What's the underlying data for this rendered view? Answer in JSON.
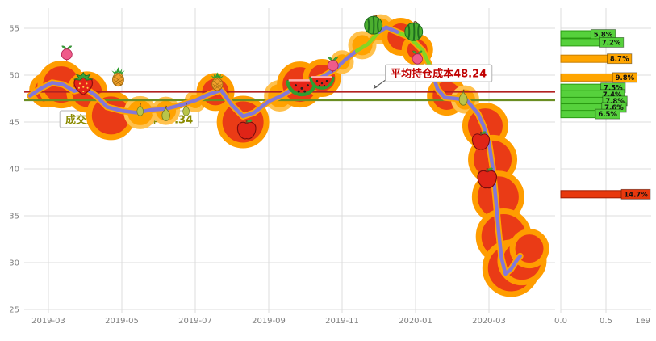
{
  "chart_data": {
    "type": "line",
    "title": "",
    "main_chart": {
      "x_tick_labels": [
        "2019-03",
        "2019-05",
        "2019-07",
        "2019-09",
        "2019-11",
        "2020-01",
        "2020-03"
      ],
      "x_tick_months": [
        3,
        5,
        7,
        9,
        11,
        13,
        15
      ],
      "y_ticks": [
        25,
        30,
        35,
        40,
        45,
        50,
        55
      ],
      "ylim": [
        24.5,
        57
      ],
      "price_color": "#8377d8",
      "halo_color": "#ffa500",
      "highlight_color": "#86d71f",
      "price_series": {
        "x": [
          2.5,
          2.8,
          3.1,
          3.4,
          3.7,
          4.0,
          4.3,
          4.6,
          5.0,
          5.4,
          5.8,
          6.2,
          6.6,
          7.0,
          7.4,
          7.7,
          8.0,
          8.3,
          8.6,
          9.0,
          9.4,
          9.8,
          10.2,
          10.5,
          10.8,
          11.1,
          11.4,
          11.7,
          12.0,
          12.2,
          12.5,
          12.8,
          13.0,
          13.2,
          13.4,
          13.6,
          13.8,
          14.1,
          14.4,
          14.7,
          14.85,
          15.0,
          15.1,
          15.18,
          15.26,
          15.34,
          15.45,
          15.6,
          15.75,
          15.85
        ],
        "y": [
          47.8,
          48.6,
          49.2,
          49.0,
          48.3,
          48.6,
          47.8,
          46.6,
          46.2,
          46.0,
          46.3,
          46.4,
          46.8,
          47.3,
          48.0,
          48.4,
          46.8,
          45.6,
          46.0,
          47.2,
          47.9,
          48.9,
          49.4,
          49.9,
          50.6,
          51.7,
          52.6,
          53.3,
          54.6,
          55.1,
          54.6,
          54.1,
          53.4,
          52.6,
          50.9,
          48.5,
          47.6,
          47.5,
          47.3,
          45.9,
          44.6,
          42.8,
          40.2,
          37.0,
          33.5,
          30.5,
          28.8,
          29.3,
          30.2,
          30.7
        ]
      },
      "avg_cost_line": {
        "value": 48.24,
        "color": "#b22222"
      },
      "vwap_cost_line": {
        "value": 47.34,
        "color": "#6b8e23"
      },
      "blobs": [
        {
          "x": 2.95,
          "y": 48.4,
          "r": 18,
          "c": "red"
        },
        {
          "x": 3.35,
          "y": 49.0,
          "r": 26,
          "c": "red"
        },
        {
          "x": 4.05,
          "y": 48.2,
          "r": 22,
          "c": "red"
        },
        {
          "x": 4.7,
          "y": 45.7,
          "r": 27,
          "c": "red"
        },
        {
          "x": 5.5,
          "y": 46.0,
          "r": 18,
          "c": "orange"
        },
        {
          "x": 6.2,
          "y": 46.2,
          "r": 15,
          "c": "orange"
        },
        {
          "x": 7.0,
          "y": 47.2,
          "r": 11,
          "c": "orange"
        },
        {
          "x": 7.55,
          "y": 48.2,
          "r": 20,
          "c": "red"
        },
        {
          "x": 8.3,
          "y": 45.0,
          "r": 29,
          "c": "red"
        },
        {
          "x": 9.3,
          "y": 47.8,
          "r": 17,
          "c": "orange"
        },
        {
          "x": 9.85,
          "y": 49.0,
          "r": 25,
          "c": "red"
        },
        {
          "x": 10.45,
          "y": 49.7,
          "r": 20,
          "c": "red"
        },
        {
          "x": 11.0,
          "y": 51.4,
          "r": 12,
          "c": "orange"
        },
        {
          "x": 11.55,
          "y": 53.2,
          "r": 15,
          "c": "orange"
        },
        {
          "x": 12.05,
          "y": 54.9,
          "r": 16,
          "c": "orange"
        },
        {
          "x": 12.6,
          "y": 54.1,
          "r": 20,
          "c": "red"
        },
        {
          "x": 13.05,
          "y": 52.7,
          "r": 16,
          "c": "red"
        },
        {
          "x": 13.85,
          "y": 47.8,
          "r": 21,
          "c": "red"
        },
        {
          "x": 14.35,
          "y": 47.4,
          "r": 15,
          "c": "orange"
        },
        {
          "x": 14.9,
          "y": 44.6,
          "r": 25,
          "c": "red"
        },
        {
          "x": 15.1,
          "y": 41.0,
          "r": 27,
          "c": "red"
        },
        {
          "x": 15.25,
          "y": 37.0,
          "r": 29,
          "c": "red"
        },
        {
          "x": 15.4,
          "y": 32.8,
          "r": 31,
          "c": "red"
        },
        {
          "x": 15.6,
          "y": 29.4,
          "r": 32,
          "c": "red"
        },
        {
          "x": 15.9,
          "y": 30.2,
          "r": 27,
          "c": "red"
        },
        {
          "x": 16.1,
          "y": 31.5,
          "r": 21,
          "c": "red"
        }
      ],
      "fruits": [
        {
          "type": "radish",
          "x": 3.5,
          "y": 52.4,
          "s": 22
        },
        {
          "type": "strawberry",
          "x": 3.95,
          "y": 49.1,
          "s": 34
        },
        {
          "type": "pineapple",
          "x": 4.9,
          "y": 49.8,
          "s": 26
        },
        {
          "type": "pear",
          "x": 5.5,
          "y": 46.3,
          "s": 18
        },
        {
          "type": "pear",
          "x": 6.2,
          "y": 45.9,
          "s": 22
        },
        {
          "type": "pear",
          "x": 6.75,
          "y": 46.3,
          "s": 18
        },
        {
          "type": "pineapple",
          "x": 7.6,
          "y": 49.3,
          "s": 25
        },
        {
          "type": "apple",
          "x": 8.4,
          "y": 44.2,
          "s": 30
        },
        {
          "type": "watermelon-slice",
          "x": 9.9,
          "y": 48.8,
          "s": 40
        },
        {
          "type": "watermelon-slice",
          "x": 10.45,
          "y": 49.3,
          "s": 32
        },
        {
          "type": "radish",
          "x": 10.75,
          "y": 51.2,
          "s": 22
        },
        {
          "type": "watermelon",
          "x": 11.85,
          "y": 55.4,
          "s": 27
        },
        {
          "type": "watermelon",
          "x": 12.95,
          "y": 54.7,
          "s": 27
        },
        {
          "type": "radish",
          "x": 13.05,
          "y": 51.9,
          "s": 21
        },
        {
          "type": "pear",
          "x": 14.3,
          "y": 47.6,
          "s": 23
        },
        {
          "type": "apple",
          "x": 14.78,
          "y": 43.0,
          "s": 28
        },
        {
          "type": "apple",
          "x": 14.95,
          "y": 39.0,
          "s": 31
        }
      ]
    },
    "side_chart": {
      "x_tick_labels": [
        "0.0",
        "0.5"
      ],
      "x_tick_values": [
        0,
        0.5
      ],
      "scale_note": "1e9",
      "bars": [
        {
          "price": 54.35,
          "pct": "5.8%",
          "value": 0.36,
          "fill": "#56d13c",
          "label_bg": "#56d13c",
          "stroke": "#2a9a12"
        },
        {
          "price": 53.5,
          "pct": "7.2%",
          "value": 0.45,
          "fill": "#56d13c",
          "label_bg": "#56d13c",
          "stroke": "#2a9a12"
        },
        {
          "price": 51.75,
          "pct": "8.7%",
          "value": 0.54,
          "fill": "#ffa500",
          "label_bg": "#ffa500",
          "stroke": "#c87d00"
        },
        {
          "price": 49.75,
          "pct": "9.8%",
          "value": 0.6,
          "fill": "#ffa500",
          "label_bg": "#ffa500",
          "stroke": "#c87d00"
        },
        {
          "price": 48.65,
          "pct": "7.5%",
          "value": 0.47,
          "fill": "#56d13c",
          "label_bg": "#56d13c",
          "stroke": "#2a9a12"
        },
        {
          "price": 47.95,
          "pct": "7.4%",
          "value": 0.46,
          "fill": "#56d13c",
          "label_bg": "#56d13c",
          "stroke": "#2a9a12"
        },
        {
          "price": 47.25,
          "pct": "7.8%",
          "value": 0.49,
          "fill": "#56d13c",
          "label_bg": "#56d13c",
          "stroke": "#2a9a12"
        },
        {
          "price": 46.55,
          "pct": "7.6%",
          "value": 0.48,
          "fill": "#56d13c",
          "label_bg": "#56d13c",
          "stroke": "#2a9a12"
        },
        {
          "price": 45.85,
          "pct": "6.5%",
          "value": 0.41,
          "fill": "#56d13c",
          "label_bg": "#56d13c",
          "stroke": "#2a9a12"
        },
        {
          "price": 37.3,
          "pct": "14.7%",
          "value": 0.92,
          "fill": "#e8380d",
          "label_bg": "#e8380d",
          "stroke": "#a01c00"
        }
      ]
    },
    "annotations": [
      {
        "id": "vwap-cost-label",
        "text": "成交量加权持仓成本47.34",
        "x": 5.2,
        "y": 45.3,
        "color": "#8b8b00",
        "layer": "back",
        "arrow": false
      },
      {
        "id": "avg-cost-label",
        "text": "平均持仓成本48.24",
        "x": 13.63,
        "y": 50.2,
        "color": "#c00000",
        "layer": "front",
        "arrow": true
      }
    ]
  }
}
